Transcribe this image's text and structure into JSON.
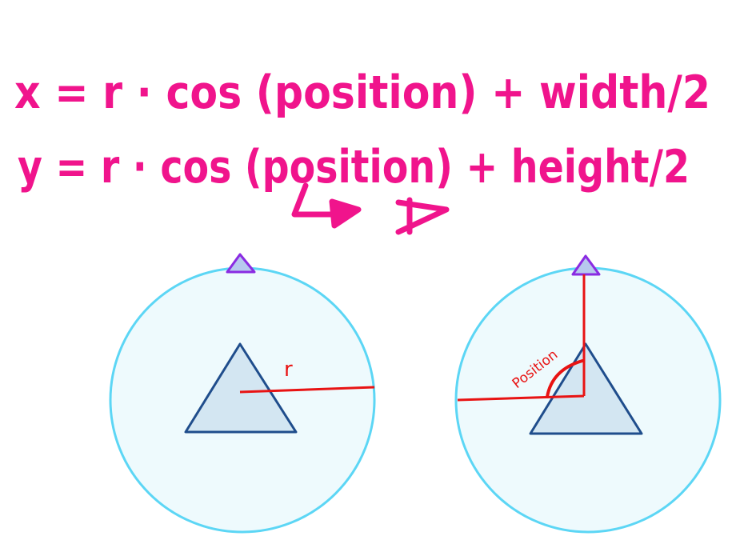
{
  "formulas": {
    "line1": "x = r · cos (position) + width/2",
    "line2": "y = r · cos (position) + height/2"
  },
  "annotations": {
    "radius_label": "r",
    "angle_label": "Position"
  },
  "colors": {
    "ink": "#f0148c",
    "circle_fill": "#eefafd",
    "circle_stroke": "#5cd6f5",
    "triangle_fill": "#d3e6f2",
    "triangle_stroke": "#1f4d8c",
    "marker_fill": "#b7c9ee",
    "marker_stroke": "#8a2be2",
    "guide": "#e81313"
  }
}
